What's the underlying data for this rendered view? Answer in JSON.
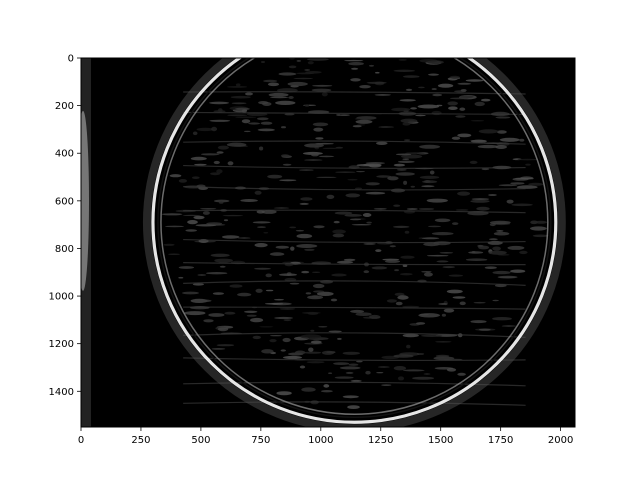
{
  "chart_data": {
    "type": "heatmap",
    "title": "",
    "xlabel": "",
    "ylabel": "",
    "colormap": "gray",
    "image_width": 2060,
    "image_height": 1550,
    "xlim": [
      0,
      2060
    ],
    "ylim": [
      1550,
      0
    ],
    "x_ticks": [
      0,
      250,
      500,
      750,
      1000,
      1250,
      1500,
      1750,
      2000
    ],
    "x_tick_labels": [
      "0",
      "250",
      "500",
      "750",
      "1000",
      "1250",
      "1500",
      "1750",
      "2000"
    ],
    "y_ticks": [
      0,
      200,
      400,
      600,
      800,
      1000,
      1200,
      1400
    ],
    "y_tick_labels": [
      "0",
      "200",
      "400",
      "600",
      "800",
      "1000",
      "1200",
      "1400"
    ],
    "grid": false,
    "legend": "none",
    "ring": {
      "center_x": 1140,
      "center_y": 690,
      "radius": 840
    },
    "colors": {
      "background": "#000000",
      "ring": "#e6e6e6",
      "texture": "#5a5a5a"
    }
  }
}
